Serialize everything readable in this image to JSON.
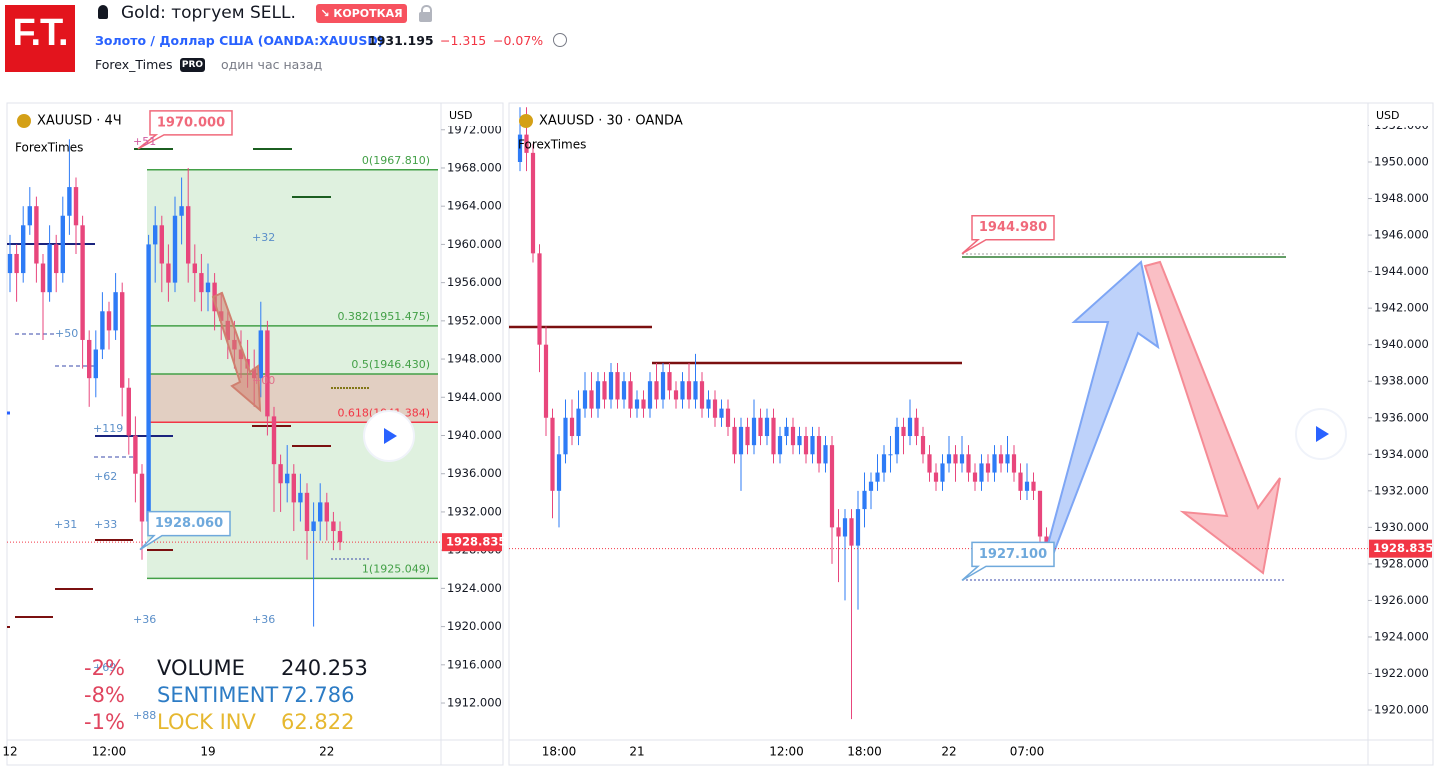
{
  "header": {
    "logo": "F.T.",
    "title": "Gold: торгуем SELL.",
    "badge": "↘ КОРОТКАЯ",
    "symbol": "Золото / Доллар США (OANDA:XAUUSD)",
    "price": "1931.195",
    "change": "−1.315",
    "change_pct": "−0.07%",
    "author": "Forex_Times",
    "author_badge": "PRO",
    "time": "один час назад"
  },
  "chart_data": [
    {
      "type": "candlestick",
      "legend": "XAUUSD · 4Ч",
      "source": "ForexTimes",
      "currency": "USD",
      "up_color": "#2e7bf6",
      "down_color": "#e8467c",
      "x": [
        "12",
        null,
        null,
        null,
        null,
        null,
        null,
        null,
        null,
        null,
        null,
        null,
        null,
        null,
        null,
        "12:00",
        null,
        null,
        null,
        null,
        null,
        null,
        null,
        null,
        null,
        null,
        null,
        null,
        null,
        null,
        "19",
        null,
        null,
        null,
        null,
        null,
        null,
        null,
        null,
        null,
        null,
        null,
        null,
        null,
        null,
        null,
        null,
        null,
        "22",
        null,
        null
      ],
      "open": [
        1957,
        1959,
        1957,
        1962,
        1964,
        1958,
        1955,
        1960,
        1957,
        1963,
        1966,
        1962,
        1950,
        1946,
        1949,
        1953,
        1951,
        1955,
        1945,
        1940,
        1936,
        1931,
        1960,
        1962,
        1958,
        1956,
        1963,
        1964,
        1958,
        1957,
        1955,
        1956,
        1953,
        1952,
        1950,
        1949,
        1948,
        1947,
        1946,
        1951,
        1942,
        1937,
        1935,
        1936,
        1933,
        1934,
        1930,
        1931,
        1933,
        1931,
        1930
      ],
      "high": [
        1961,
        1960,
        1964,
        1966,
        1965,
        1959,
        1962,
        1961,
        1965,
        1971,
        1967,
        1963,
        1951,
        1951,
        1955,
        1954,
        1957,
        1956,
        1946,
        1942,
        1937,
        1961,
        1964,
        1963,
        1960,
        1965,
        1967,
        1968,
        1960,
        1959,
        1958,
        1957,
        1955,
        1953,
        1952,
        1951,
        1950,
        1949,
        1954,
        1952,
        1943,
        1938,
        1939,
        1937,
        1936,
        1935,
        1933,
        1935,
        1934,
        1932,
        1931
      ],
      "low": [
        1955,
        1954,
        1956,
        1961,
        1956,
        1950,
        1954,
        1955,
        1956,
        1961,
        1959,
        1947,
        1943,
        1944,
        1948,
        1949,
        1950,
        1942,
        1938,
        1933,
        1927,
        1930,
        1956,
        1955,
        1954,
        1955,
        1960,
        1956,
        1954,
        1953,
        1953,
        1951,
        1950,
        1948,
        1947,
        1946,
        1945,
        1943,
        1944,
        1940,
        1932,
        1932,
        1933,
        1930,
        1931,
        1927,
        1920,
        1929,
        1929,
        1928,
        1928
      ],
      "close": [
        1959,
        1957,
        1962,
        1964,
        1958,
        1955,
        1960,
        1957,
        1963,
        1966,
        1962,
        1950,
        1946,
        1949,
        1953,
        1951,
        1955,
        1945,
        1940,
        1936,
        1931,
        1960,
        1962,
        1958,
        1956,
        1963,
        1964,
        1958,
        1957,
        1955,
        1956,
        1953,
        1952,
        1950,
        1949,
        1948,
        1947,
        1946,
        1951,
        1942,
        1937,
        1935,
        1936,
        1933,
        1934,
        1930,
        1931,
        1933,
        1931,
        1930,
        1928.835
      ],
      "ylim": [
        1908.13,
        1974.8
      ],
      "yticks": [
        {
          "value": 1912,
          "label": "1912.000"
        },
        {
          "value": 1916,
          "label": "1916.000"
        },
        {
          "value": 1920,
          "label": "1920.000"
        },
        {
          "value": 1924,
          "label": "1924.000"
        },
        {
          "value": 1928,
          "label": "1928.000"
        },
        {
          "value": 1932,
          "label": "1932.000"
        },
        {
          "value": 1936,
          "label": "1936.000"
        },
        {
          "value": 1940,
          "label": "1940.000"
        },
        {
          "value": 1944,
          "label": "1944.000"
        },
        {
          "value": 1948,
          "label": "1948.000"
        },
        {
          "value": 1952,
          "label": "1952.000"
        },
        {
          "value": 1956,
          "label": "1956.000"
        },
        {
          "value": 1960,
          "label": "1960.000"
        },
        {
          "value": 1964,
          "label": "1964.000"
        },
        {
          "value": 1968,
          "label": "1968.000"
        },
        {
          "value": 1972,
          "label": "1972.000"
        }
      ],
      "last_price": 1928.835,
      "fib_levels": [
        {
          "value": 1967.81,
          "label": "0(1967.810)",
          "color": "#43a047"
        },
        {
          "value": 1951.475,
          "label": "0.382(1951.475)",
          "color": "#43a047"
        },
        {
          "value": 1946.43,
          "label": "0.5(1946.430)",
          "color": "#43a047"
        },
        {
          "value": 1941.384,
          "label": "0.618(1941.384)",
          "color": "#f23645"
        },
        {
          "value": 1925.049,
          "label": "1(1925.049)",
          "color": "#43a047"
        }
      ],
      "callouts": [
        {
          "value": 1970,
          "label": "1970.000",
          "color": "#f0697b"
        },
        {
          "value": 1928.06,
          "label": "1928.060",
          "color": "#6fa9dc"
        }
      ],
      "annotations": [
        "+51",
        "+32",
        "+50",
        "+119",
        "+62",
        "+31",
        "+33",
        "+36",
        "+36",
        "+00",
        "+69",
        "+88"
      ],
      "stats": [
        [
          "-2%",
          "VOLUME",
          "240.253"
        ],
        [
          "-8%",
          "SENTIMENT",
          "72.786"
        ],
        [
          "-1%",
          "LOCK INV",
          "62.822"
        ]
      ]
    },
    {
      "type": "candlestick",
      "legend": "XAUUSD · 30 · OANDA",
      "source": "ForexTimes",
      "currency": "USD",
      "up_color": "#2e7bf6",
      "down_color": "#e8467c",
      "x": [
        null,
        null,
        null,
        null,
        null,
        null,
        "18:00",
        null,
        null,
        null,
        null,
        null,
        null,
        null,
        null,
        null,
        null,
        null,
        "21",
        null,
        null,
        null,
        null,
        null,
        null,
        null,
        null,
        null,
        null,
        null,
        null,
        null,
        null,
        null,
        null,
        null,
        null,
        null,
        null,
        null,
        null,
        "12:00",
        null,
        null,
        null,
        null,
        null,
        null,
        null,
        null,
        null,
        null,
        null,
        "18:00",
        null,
        null,
        null,
        null,
        null,
        null,
        null,
        null,
        null,
        null,
        null,
        null,
        "22",
        null,
        null,
        null,
        null,
        null,
        null,
        null,
        null,
        null,
        null,
        null,
        "07:00",
        null,
        null,
        null
      ],
      "open": [
        1950,
        1951.5,
        1950.5,
        1945,
        1940,
        1936,
        1932,
        1934,
        1936,
        1935,
        1936.5,
        1937.5,
        1936.5,
        1938,
        1937,
        1938.5,
        1937,
        1938,
        1936.5,
        1937,
        1936.5,
        1938,
        1937,
        1938.5,
        1937.5,
        1937,
        1938,
        1937,
        1938,
        1936.5,
        1937,
        1936,
        1936.5,
        1935.5,
        1934,
        1935.5,
        1934.5,
        1936,
        1935,
        1936,
        1934,
        1935,
        1935.5,
        1934.5,
        1935,
        1934,
        1935,
        1933.5,
        1934.5,
        1930,
        1929.5,
        1930.5,
        1929,
        1931,
        1932,
        1932.5,
        1933,
        1934,
        1934,
        1935.5,
        1935,
        1936,
        1935,
        1934,
        1933,
        1932.5,
        1933.5,
        1934,
        1933.5,
        1934,
        1933,
        1932.5,
        1933.5,
        1933,
        1934,
        1933.5,
        1934,
        1933,
        1932,
        1932.5,
        1932,
        1929.5
      ],
      "high": [
        1953,
        1953,
        1951,
        1945.5,
        1941,
        1936.5,
        1935,
        1937,
        1937,
        1937.5,
        1938.5,
        1938.5,
        1938.5,
        1938.5,
        1939,
        1939,
        1938.5,
        1938.5,
        1937.5,
        1937.5,
        1938.5,
        1939,
        1939,
        1939,
        1938,
        1938.5,
        1939,
        1939.5,
        1938.5,
        1937.5,
        1937.5,
        1937,
        1937,
        1936,
        1936,
        1936,
        1937,
        1936.5,
        1936.5,
        1936.5,
        1935.5,
        1936,
        1936,
        1935.5,
        1935.5,
        1935.5,
        1935.5,
        1935,
        1935,
        1931,
        1931,
        1931,
        1932,
        1933,
        1933,
        1934,
        1934.5,
        1935,
        1936,
        1936,
        1937,
        1936.5,
        1935.5,
        1934.5,
        1933.5,
        1934,
        1935,
        1934.5,
        1935,
        1934.5,
        1933.5,
        1934,
        1934,
        1934.5,
        1934.5,
        1935,
        1934.5,
        1933.5,
        1933.5,
        1933,
        1932,
        1930
      ],
      "low": [
        1949.5,
        1949.5,
        1944.5,
        1938.5,
        1935,
        1930.5,
        1930,
        1933.5,
        1934.5,
        1934.5,
        1936,
        1936,
        1936,
        1936.5,
        1936.5,
        1936.5,
        1936.5,
        1936,
        1936,
        1936,
        1936,
        1936.5,
        1936.5,
        1937,
        1936.5,
        1936.5,
        1936.5,
        1936.5,
        1936,
        1936,
        1935.5,
        1935.5,
        1935,
        1933.5,
        1932,
        1934,
        1934,
        1934.5,
        1934.5,
        1933.5,
        1933.5,
        1934.5,
        1934,
        1934,
        1933.5,
        1933.5,
        1933,
        1933,
        1928,
        1927,
        1926,
        1919.5,
        1925.5,
        1930,
        1931,
        1932,
        1932.5,
        1933,
        1933.5,
        1934,
        1934.5,
        1934.5,
        1933.5,
        1932.5,
        1932,
        1932,
        1933,
        1932.5,
        1933,
        1932.5,
        1932,
        1932,
        1932.5,
        1932.5,
        1933,
        1933,
        1932.5,
        1931.5,
        1931.5,
        1931.5,
        1929,
        1928.3
      ],
      "close": [
        1951.5,
        1950.5,
        1945,
        1940,
        1936,
        1932,
        1934,
        1936,
        1935,
        1936.5,
        1937.5,
        1936.5,
        1938,
        1937,
        1938.5,
        1937,
        1938,
        1936.5,
        1937,
        1936.5,
        1938,
        1937,
        1938.5,
        1937.5,
        1937,
        1938,
        1937,
        1938,
        1936.5,
        1937,
        1936,
        1936.5,
        1935.5,
        1934,
        1935.5,
        1934.5,
        1936,
        1935,
        1936,
        1934,
        1935,
        1935.5,
        1934.5,
        1935,
        1934,
        1935,
        1933.5,
        1934.5,
        1930,
        1929.5,
        1930.5,
        1929,
        1931,
        1932,
        1932.5,
        1933,
        1934,
        1934,
        1935.5,
        1935,
        1936,
        1935,
        1934,
        1933,
        1932.5,
        1933.5,
        1934,
        1933.5,
        1934,
        1933,
        1932.5,
        1933.5,
        1933,
        1934,
        1933.5,
        1934,
        1933,
        1932,
        1932.5,
        1932,
        1929.5,
        1928.835
      ],
      "ylim": [
        1918.36,
        1953.23
      ],
      "yticks": [
        {
          "value": 1920,
          "label": "1920.000"
        },
        {
          "value": 1922,
          "label": "1922.000"
        },
        {
          "value": 1924,
          "label": "1924.000"
        },
        {
          "value": 1926,
          "label": "1926.000"
        },
        {
          "value": 1928,
          "label": "1928.000"
        },
        {
          "value": 1930,
          "label": "1930.000"
        },
        {
          "value": 1932,
          "label": "1932.000"
        },
        {
          "value": 1934,
          "label": "1934.000"
        },
        {
          "value": 1936,
          "label": "1936.000"
        },
        {
          "value": 1938,
          "label": "1938.000"
        },
        {
          "value": 1940,
          "label": "1940.000"
        },
        {
          "value": 1942,
          "label": "1942.000"
        },
        {
          "value": 1944,
          "label": "1944.000"
        },
        {
          "value": 1946,
          "label": "1946.000"
        },
        {
          "value": 1948,
          "label": "1948.000"
        },
        {
          "value": 1950,
          "label": "1950.000"
        },
        {
          "value": 1952,
          "label": "1952.000"
        }
      ],
      "last_price": 1928.835,
      "callouts": [
        {
          "value": 1944.98,
          "label": "1944.980",
          "color": "#f0697b"
        },
        {
          "value": 1927.1,
          "label": "1927.100",
          "color": "#6fa9dc"
        }
      ]
    }
  ]
}
